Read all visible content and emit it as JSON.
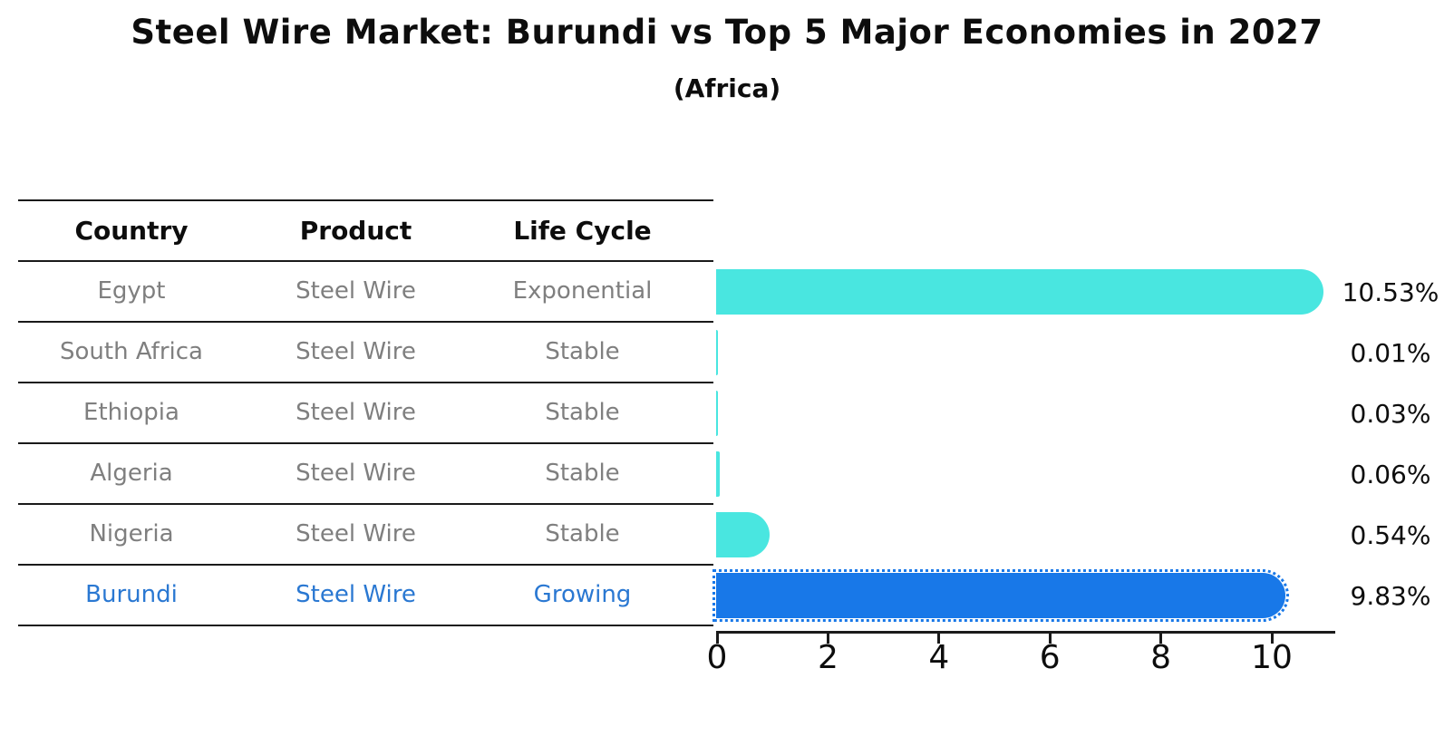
{
  "header": {
    "title": "Steel Wire Market: Burundi vs Top 5 Major Economies in 2027",
    "subtitle": "(Africa)"
  },
  "table": {
    "columns": [
      "Country",
      "Product",
      "Life Cycle"
    ],
    "text_color": "#7f7f7f",
    "header_color": "#0d0d0d",
    "highlight_text_color": "#2a78d2",
    "line_color": "#1a1a1a"
  },
  "chart_data": {
    "type": "bar",
    "orientation": "horizontal",
    "title": "Steel Wire Market: Burundi vs Top 5 Major Economies in 2027",
    "subtitle": "(Africa)",
    "categories": [
      "Egypt",
      "South Africa",
      "Ethiopia",
      "Algeria",
      "Nigeria",
      "Burundi"
    ],
    "values": [
      10.53,
      0.01,
      0.03,
      0.06,
      0.54,
      9.83
    ],
    "value_labels": [
      "10.53%",
      "0.01%",
      "0.03%",
      "0.06%",
      "0.54%",
      "9.83%"
    ],
    "rows": [
      {
        "country": "Egypt",
        "product": "Steel Wire",
        "life_cycle": "Exponential",
        "value": 10.53,
        "value_label": "10.53%",
        "highlight": false
      },
      {
        "country": "South Africa",
        "product": "Steel Wire",
        "life_cycle": "Stable",
        "value": 0.01,
        "value_label": "0.01%",
        "highlight": false
      },
      {
        "country": "Ethiopia",
        "product": "Steel Wire",
        "life_cycle": "Stable",
        "value": 0.03,
        "value_label": "0.03%",
        "highlight": false
      },
      {
        "country": "Algeria",
        "product": "Steel Wire",
        "life_cycle": "Stable",
        "value": 0.06,
        "value_label": "0.06%",
        "highlight": false
      },
      {
        "country": "Nigeria",
        "product": "Steel Wire",
        "life_cycle": "Stable",
        "value": 0.54,
        "value_label": "0.54%",
        "highlight": false
      },
      {
        "country": "Burundi",
        "product": "Steel Wire",
        "life_cycle": "Growing",
        "value": 9.83,
        "value_label": "9.83%",
        "highlight": true
      }
    ],
    "xticks": [
      0,
      2,
      4,
      6,
      8,
      10
    ],
    "xlim": [
      0,
      11.15
    ],
    "grid": false,
    "legend": "none",
    "bar_color": "#49e6e0",
    "highlight_bar_color": "#1878e8",
    "axis_color": "#1a1a1a",
    "label_color": "#0d0d0d"
  }
}
